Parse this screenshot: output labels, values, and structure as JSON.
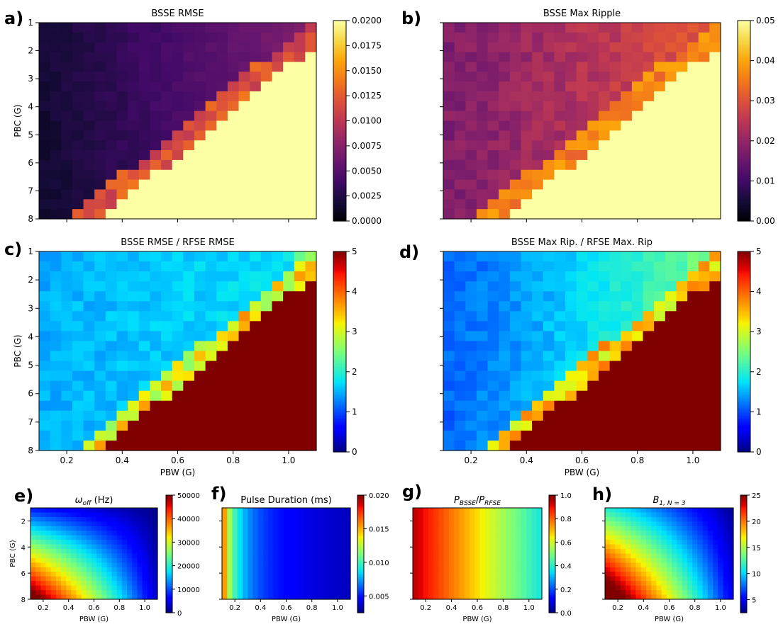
{
  "colors": {
    "axis": "#000000",
    "background": "#ffffff"
  },
  "chart_data": [
    {
      "id": "a",
      "letter": "a)",
      "type": "heatmap",
      "title": "BSSE RMSE",
      "xlabel": "",
      "ylabel": "PBC (G)",
      "colormap": "inferno",
      "x_range": [
        0.1,
        1.1
      ],
      "y_range": [
        1,
        8
      ],
      "y_inverted": true,
      "x_ticks": [
        0.2,
        0.4,
        0.6,
        0.8,
        1.0
      ],
      "x_tick_labels": [],
      "y_ticks": [
        1,
        2,
        3,
        4,
        5,
        6,
        7,
        8
      ],
      "y_tick_labels": [
        "1",
        "2",
        "3",
        "4",
        "5",
        "6",
        "7",
        "8"
      ],
      "colorbar": {
        "range": [
          0,
          0.02
        ],
        "ticks": [
          0,
          0.0025,
          0.005,
          0.0075,
          0.01,
          0.0125,
          0.015,
          0.0175,
          0.02
        ],
        "tick_labels": [
          "0.0000",
          "0.0025",
          "0.0050",
          "0.0075",
          "0.0100",
          "0.0125",
          "0.0150",
          "0.0175",
          "0.0200"
        ]
      },
      "model": {
        "kind": "rmse",
        "base": 0.0015,
        "slope": 0.0052,
        "cutoff": 1.32,
        "sat": 0.021,
        "edge": 0.012,
        "noise": 0.0004
      },
      "grid": {
        "nx": 25,
        "ny": 20
      }
    },
    {
      "id": "b",
      "letter": "b)",
      "type": "heatmap",
      "title": "BSSE Max Ripple",
      "xlabel": "",
      "ylabel": "",
      "colormap": "inferno",
      "x_range": [
        0.1,
        1.1
      ],
      "y_range": [
        1,
        8
      ],
      "y_inverted": true,
      "x_ticks": [
        0.2,
        0.4,
        0.6,
        0.8,
        1.0
      ],
      "x_tick_labels": [],
      "y_ticks": [
        1,
        2,
        3,
        4,
        5,
        6,
        7,
        8
      ],
      "y_tick_labels": [],
      "colorbar": {
        "range": [
          0,
          0.05
        ],
        "ticks": [
          0,
          0.01,
          0.02,
          0.03,
          0.04,
          0.05
        ],
        "tick_labels": [
          "0.00",
          "0.01",
          "0.02",
          "0.03",
          "0.04",
          "0.05"
        ]
      },
      "model": {
        "kind": "ripple",
        "base": 0.017,
        "slope": 0.013,
        "cutoff": 1.32,
        "sat": 0.055,
        "edge": 0.036,
        "noise": 0.0025
      },
      "grid": {
        "nx": 25,
        "ny": 20
      }
    },
    {
      "id": "c",
      "letter": "c)",
      "type": "heatmap",
      "title": "BSSE RMSE / RFSE RMSE",
      "xlabel": "PBW (G)",
      "ylabel": "PBC (G)",
      "colormap": "jet",
      "x_range": [
        0.1,
        1.1
      ],
      "y_range": [
        1,
        8
      ],
      "y_inverted": true,
      "x_ticks": [
        0.2,
        0.4,
        0.6,
        0.8,
        1.0
      ],
      "x_tick_labels": [
        "0.2",
        "0.4",
        "0.6",
        "0.8",
        "1.0"
      ],
      "y_ticks": [
        1,
        2,
        3,
        4,
        5,
        6,
        7,
        8
      ],
      "y_tick_labels": [
        "1",
        "2",
        "3",
        "4",
        "5",
        "6",
        "7",
        "8"
      ],
      "colorbar": {
        "range": [
          0,
          5
        ],
        "ticks": [
          0,
          1,
          2,
          3,
          4,
          5
        ],
        "tick_labels": [
          "0",
          "1",
          "2",
          "3",
          "4",
          "5"
        ]
      },
      "model": {
        "kind": "ratio",
        "base": 1.45,
        "slope": 0.5,
        "cutoff": 1.32,
        "sat": 6,
        "edge": 3.2,
        "noise": 0.14
      },
      "grid": {
        "nx": 25,
        "ny": 20
      }
    },
    {
      "id": "d",
      "letter": "d)",
      "type": "heatmap",
      "title": "BSSE Max Rip. / RFSE Max. Rip",
      "xlabel": "PBW (G)",
      "ylabel": "",
      "colormap": "jet",
      "x_range": [
        0.1,
        1.1
      ],
      "y_range": [
        1,
        8
      ],
      "y_inverted": true,
      "x_ticks": [
        0.2,
        0.4,
        0.6,
        0.8,
        1.0
      ],
      "x_tick_labels": [
        "0.2",
        "0.4",
        "0.6",
        "0.8",
        "1.0"
      ],
      "y_ticks": [
        1,
        2,
        3,
        4,
        5,
        6,
        7,
        8
      ],
      "y_tick_labels": [],
      "colorbar": {
        "range": [
          0,
          5
        ],
        "ticks": [
          0,
          1,
          2,
          3,
          4,
          5
        ],
        "tick_labels": [
          "0",
          "1",
          "2",
          "3",
          "4",
          "5"
        ]
      },
      "model": {
        "kind": "ratio2",
        "base": 1.05,
        "slope": 1.3,
        "cutoff": 1.32,
        "sat": 6,
        "edge": 3.4,
        "noise": 0.15
      },
      "grid": {
        "nx": 25,
        "ny": 20
      }
    },
    {
      "id": "e",
      "letter": "e)",
      "type": "heatmap",
      "title": "ω_off (Hz)",
      "title_parts": {
        "sym": "ω",
        "sub": "off",
        "rest": " (Hz)"
      },
      "xlabel": "PBW (G)",
      "ylabel": "PBC (G)",
      "colormap": "jet",
      "x_range": [
        0.1,
        1.1
      ],
      "y_range": [
        1,
        8
      ],
      "y_inverted": true,
      "x_ticks": [
        0.2,
        0.4,
        0.6,
        0.8,
        1.0
      ],
      "x_tick_labels": [
        "0.2",
        "0.4",
        "0.6",
        "0.8",
        "1.0"
      ],
      "y_ticks": [
        2,
        4,
        6,
        8
      ],
      "y_tick_labels": [
        "2",
        "4",
        "6",
        "8"
      ],
      "colorbar": {
        "range": [
          0,
          50000
        ],
        "ticks": [
          0,
          10000,
          20000,
          30000,
          40000,
          50000
        ],
        "tick_labels": [
          "0",
          "10000",
          "20000",
          "30000",
          "40000",
          "50000"
        ]
      },
      "model": {
        "kind": "omega"
      },
      "grid": {
        "nx": 25,
        "ny": 20
      }
    },
    {
      "id": "f",
      "letter": "f)",
      "type": "heatmap",
      "title": "Pulse Duration (ms)",
      "xlabel": "PBW (G)",
      "ylabel": "",
      "colormap": "jet",
      "x_range": [
        0.1,
        1.1
      ],
      "y_range": [
        1,
        8
      ],
      "y_inverted": true,
      "x_ticks": [
        0.2,
        0.4,
        0.6,
        0.8,
        1.0
      ],
      "x_tick_labels": [
        "0.2",
        "0.4",
        "0.6",
        "0.8",
        "1.0"
      ],
      "y_ticks": [
        2,
        4,
        6,
        8
      ],
      "y_tick_labels": [],
      "colorbar": {
        "range": [
          0.0025,
          0.02
        ],
        "ticks": [
          0.005,
          0.01,
          0.015,
          0.02
        ],
        "tick_labels": [
          "0.005",
          "0.010",
          "0.015",
          "0.020"
        ]
      },
      "model": {
        "kind": "duration"
      },
      "grid": {
        "nx": 25,
        "ny": 20
      }
    },
    {
      "id": "g",
      "letter": "g)",
      "type": "heatmap",
      "title": "P_BSSE/P_RFSE",
      "title_parts": {
        "a": "P",
        "asub": "BSSE",
        "mid": "/",
        "b": "P",
        "bsub": "RFSE"
      },
      "xlabel": "PBW (G)",
      "ylabel": "",
      "colormap": "jet",
      "x_range": [
        0.1,
        1.1
      ],
      "y_range": [
        1,
        8
      ],
      "y_inverted": true,
      "x_ticks": [
        0.2,
        0.4,
        0.6,
        0.8,
        1.0
      ],
      "x_tick_labels": [
        "0.2",
        "0.4",
        "0.6",
        "0.8",
        "1.0"
      ],
      "y_ticks": [
        2,
        4,
        6,
        8
      ],
      "y_tick_labels": [],
      "colorbar": {
        "range": [
          0,
          1
        ],
        "ticks": [
          0,
          0.2,
          0.4,
          0.6,
          0.8,
          1.0
        ],
        "tick_labels": [
          "0.0",
          "0.2",
          "0.4",
          "0.6",
          "0.8",
          "1.0"
        ]
      },
      "model": {
        "kind": "power"
      },
      "grid": {
        "nx": 25,
        "ny": 20
      }
    },
    {
      "id": "h",
      "letter": "h)",
      "type": "heatmap",
      "title": "B_1,N=3",
      "title_parts": {
        "sym": "B",
        "sub": "1, N = 3"
      },
      "xlabel": "PBW (G)",
      "ylabel": "",
      "colormap": "jet",
      "x_range": [
        0.1,
        1.1
      ],
      "y_range": [
        1,
        8
      ],
      "y_inverted": true,
      "x_ticks": [
        0.2,
        0.4,
        0.6,
        0.8,
        1.0
      ],
      "x_tick_labels": [
        "0.2",
        "0.4",
        "0.6",
        "0.8",
        "1.0"
      ],
      "y_ticks": [
        2,
        4,
        6,
        8
      ],
      "y_tick_labels": [],
      "colorbar": {
        "range": [
          2.5,
          25
        ],
        "ticks": [
          5,
          10,
          15,
          20,
          25
        ],
        "tick_labels": [
          "5",
          "10",
          "15",
          "20",
          "25"
        ]
      },
      "model": {
        "kind": "b1"
      },
      "grid": {
        "nx": 25,
        "ny": 20
      }
    }
  ]
}
